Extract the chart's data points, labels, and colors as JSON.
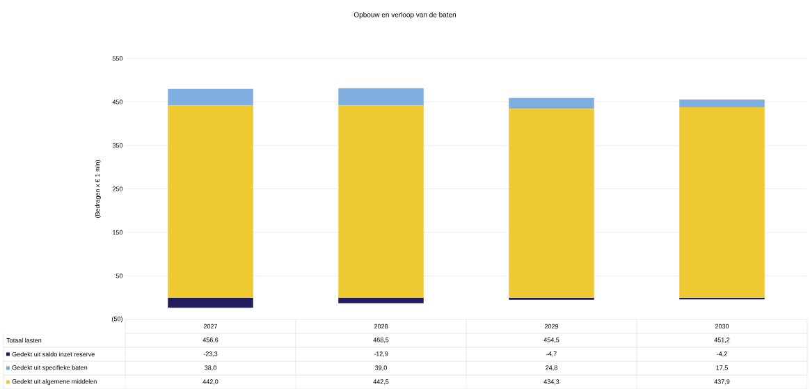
{
  "chart_data": {
    "type": "bar",
    "title": "Opbouw en verloop van de baten",
    "ylabel": "(Bedragen x € 1 mln)",
    "categories": [
      "2027",
      "2028",
      "2029",
      "2030"
    ],
    "stacked": true,
    "series": [
      {
        "name": "Gedekt uit algemene middelen",
        "color": "#eec932",
        "values": [
          442.0,
          442.5,
          434.3,
          437.9
        ],
        "value_labels": [
          "442,0",
          "442,5",
          "434,3",
          "437,9"
        ]
      },
      {
        "name": "Gedekt uit specifieke baten",
        "color": "#7eaee0",
        "values": [
          38.0,
          39.0,
          24.8,
          17.5
        ],
        "value_labels": [
          "38,0",
          "39,0",
          "24,8",
          "17,5"
        ]
      },
      {
        "name": "Gedekt uit saldo inzet reserve",
        "color": "#211c5c",
        "values": [
          -23.3,
          -12.9,
          -4.7,
          -4.2
        ],
        "value_labels": [
          "-23,3",
          "-12,9",
          "-4,7",
          "-4,2"
        ]
      }
    ],
    "annotations": [
      "Totaal lasten",
      "456,6",
      "468,5",
      "454,5",
      "451,2"
    ],
    "ylim": [
      -50,
      550
    ],
    "yticks": [
      {
        "value": -50,
        "label": "(50)"
      },
      50,
      150,
      250,
      350,
      450,
      550
    ],
    "grid": "y",
    "legend": "bottom"
  }
}
